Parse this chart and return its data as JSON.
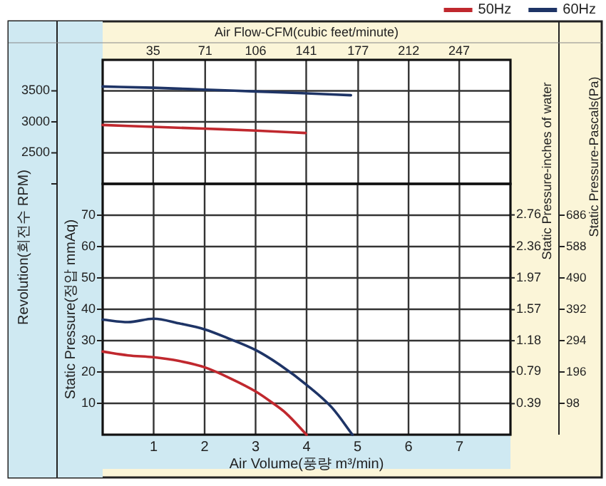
{
  "chart_data": [
    {
      "type": "line",
      "x2label": "Air Flow-CFM(cubic feet/minute)",
      "ylabel": "Revolution(회전수 RPM)",
      "xlim": [
        0,
        8
      ],
      "x2lim": [
        0,
        282.5
      ],
      "x2ticks": [
        35,
        71,
        106,
        141,
        177,
        212,
        247
      ],
      "ylim": [
        2000,
        4000
      ],
      "yticks": [
        {
          "value": 2000,
          "label": null
        },
        2500,
        3000,
        3500
      ],
      "grid": true,
      "legend": "top right",
      "line_style": "solid",
      "series": [
        {
          "name": "50Hz",
          "color": "#c0282e",
          "x": [
            0,
            1,
            2,
            3,
            3.98
          ],
          "values": [
            2950,
            2920,
            2890,
            2860,
            2820
          ]
        },
        {
          "name": "60Hz",
          "color": "#1e3466",
          "x": [
            0,
            1,
            2,
            3,
            4,
            4.87
          ],
          "values": [
            3570,
            3550,
            3520,
            3490,
            3460,
            3430
          ]
        }
      ]
    },
    {
      "type": "line",
      "xlabel": "Air Volume(풍량 m³/min)",
      "ylabel": "Static Pressure(정압 mmAq)",
      "y2label": "Static Pressure-inches of water",
      "y3label": "Static Pressure-Pascals(Pa)",
      "xlim": [
        0,
        8
      ],
      "xticks": [
        1,
        2,
        3,
        4,
        5,
        6,
        7
      ],
      "ylim": [
        0,
        80
      ],
      "yticks": [
        10,
        20,
        30,
        40,
        50,
        60,
        70
      ],
      "y2lim": [
        0,
        3.15
      ],
      "y2ticks": [
        0.39,
        0.79,
        1.18,
        1.57,
        1.97,
        2.36,
        2.76
      ],
      "y3lim": [
        0,
        784
      ],
      "y3ticks": [
        98,
        196,
        294,
        392,
        490,
        588,
        686
      ],
      "grid": true,
      "line_style": "solid",
      "series": [
        {
          "color": "#c0282e",
          "x": [
            0,
            0.5,
            1,
            1.5,
            2,
            2.5,
            3,
            3.3,
            3.6,
            4
          ],
          "values": [
            26.5,
            25.3,
            24.7,
            23.5,
            21.5,
            18,
            13.8,
            10.5,
            6.8,
            0
          ]
        },
        {
          "color": "#1e3466",
          "x": [
            0,
            0.5,
            1,
            1.5,
            2,
            2.5,
            3,
            3.5,
            4,
            4.5,
            4.9
          ],
          "values": [
            36.7,
            35.9,
            37,
            35.5,
            33.6,
            30.5,
            27,
            22,
            15.9,
            8.6,
            0
          ]
        }
      ]
    }
  ]
}
